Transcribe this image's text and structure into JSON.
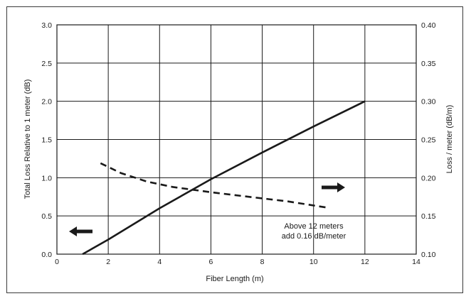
{
  "chart_data": {
    "type": "line",
    "title": "",
    "xlabel": "Fiber Length (m)",
    "ylabel_left": "Total Loss Relative to 1 meter (dB)",
    "ylabel_right": "Loss / meter (dB/m)",
    "xlim": [
      0,
      14
    ],
    "ylim_left": [
      0.0,
      3.0
    ],
    "ylim_right": [
      0.1,
      0.4
    ],
    "xticks": [
      "0",
      "2",
      "4",
      "6",
      "8",
      "10",
      "12",
      "14"
    ],
    "yticks_left": [
      "0.0",
      "0.5",
      "1.0",
      "1.5",
      "2.0",
      "2.5",
      "3.0"
    ],
    "yticks_right": [
      "0.10",
      "0.15",
      "0.20",
      "0.25",
      "0.30",
      "0.35",
      "0.40"
    ],
    "grid": true,
    "series": [
      {
        "axis": "left",
        "style": "solid",
        "x": [
          1,
          2,
          4,
          6,
          8,
          10,
          12
        ],
        "y": [
          0.0,
          0.19,
          0.6,
          0.98,
          1.33,
          1.67,
          2.0
        ]
      },
      {
        "axis": "right",
        "style": "dashed",
        "x": [
          1.7,
          2.5,
          3.5,
          4.5,
          6,
          7.5,
          9,
          10.5
        ],
        "y": [
          0.219,
          0.206,
          0.195,
          0.188,
          0.181,
          0.175,
          0.169,
          0.161
        ]
      }
    ],
    "annotations": {
      "note_line1": "Above 12 meters",
      "note_line2": "add 0.16 dB/meter",
      "left_arrow": "arrow pointing left (solid line uses left axis)",
      "right_arrow": "arrow pointing right (dashed line uses right axis)"
    },
    "colors": {
      "line": "#1a1a1a",
      "grid": "#1a1a1a",
      "frame": "#3a3a3a"
    }
  }
}
